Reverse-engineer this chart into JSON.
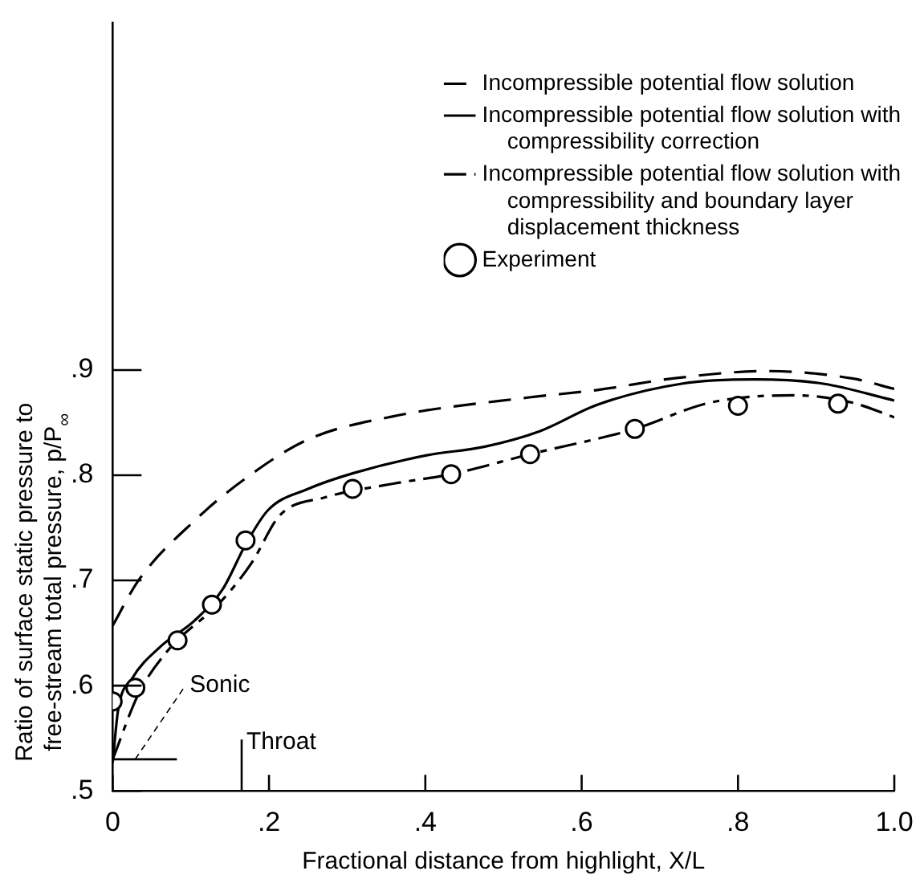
{
  "chart_data": {
    "type": "line",
    "xlabel": "Fractional distance from highlight, X/L",
    "ylabel": "Ratio of surface static pressure to free-stream total pressure, p/P$_{∞}$",
    "xlim": [
      0,
      1.0
    ],
    "xticks": [
      0,
      {
        "value": 0.2,
        "label": ".2"
      },
      {
        "value": 0.4,
        "label": ".4"
      },
      {
        "value": 0.6,
        "label": ".6"
      },
      {
        "value": 0.8,
        "label": ".8"
      },
      {
        "value": 1.0,
        "label": "1.0"
      }
    ],
    "ylim": [
      0.5,
      1.23
    ],
    "yticks": [
      {
        "value": 0.5,
        "label": ".5"
      },
      {
        "value": 0.6,
        "label": ".6"
      },
      {
        "value": 0.7,
        "label": ".7"
      },
      {
        "value": 0.8,
        "label": ".8"
      },
      {
        "value": 0.9,
        "label": ".9"
      }
    ],
    "legend": "top right",
    "marker": "none",
    "series": [
      {
        "name": "Incompressible potential flow solution",
        "type": "line",
        "line_style": "dashed",
        "color": "#000000",
        "x": [
          0,
          0.033,
          0.105,
          0.17,
          0.25,
          0.359,
          0.533,
          0.62,
          0.717,
          0.837,
          0.946,
          1.0
        ],
        "values": [
          0.657,
          0.7,
          0.757,
          0.797,
          0.834,
          0.856,
          0.874,
          0.881,
          0.892,
          0.899,
          0.892,
          0.882
        ]
      },
      {
        "name": "Incompressible potential flow solution with compressibility correction",
        "type": "line",
        "line_style": "solid",
        "color": "#000000",
        "x": [
          0,
          0.007,
          0.025,
          0.061,
          0.105,
          0.141,
          0.17,
          0.199,
          0.25,
          0.308,
          0.402,
          0.475,
          0.547,
          0.62,
          0.728,
          0.822,
          0.909,
          1.0
        ],
        "values": [
          0.527,
          0.577,
          0.607,
          0.637,
          0.662,
          0.692,
          0.734,
          0.767,
          0.787,
          0.802,
          0.819,
          0.827,
          0.842,
          0.867,
          0.887,
          0.891,
          0.887,
          0.871
        ]
      },
      {
        "name": "Incompressible potential flow solution with compressibility and boundary layer displacement thickness",
        "type": "line",
        "line_style": "dashdot",
        "color": "#000000",
        "x": [
          0,
          0.033,
          0.069,
          0.141,
          0.178,
          0.214,
          0.272,
          0.359,
          0.433,
          0.534,
          0.668,
          0.764,
          0.873,
          0.946,
          1.0
        ],
        "values": [
          0.53,
          0.592,
          0.632,
          0.682,
          0.717,
          0.762,
          0.779,
          0.792,
          0.801,
          0.82,
          0.844,
          0.869,
          0.876,
          0.869,
          0.855
        ]
      },
      {
        "name": "Experiment",
        "type": "scatter",
        "marker": "circle",
        "color": "#000000",
        "x": [
          0,
          0.029,
          0.083,
          0.127,
          0.17,
          0.307,
          0.433,
          0.534,
          0.668,
          0.8,
          0.928
        ],
        "values": [
          0.585,
          0.598,
          0.643,
          0.677,
          0.738,
          0.787,
          0.801,
          0.82,
          0.844,
          0.866,
          0.868
        ]
      }
    ],
    "ref_lines": [
      {
        "axis": "y",
        "value": 0.53,
        "label": "Sonic"
      },
      {
        "axis": "x",
        "value": 0.165,
        "label": "Throat"
      }
    ]
  }
}
